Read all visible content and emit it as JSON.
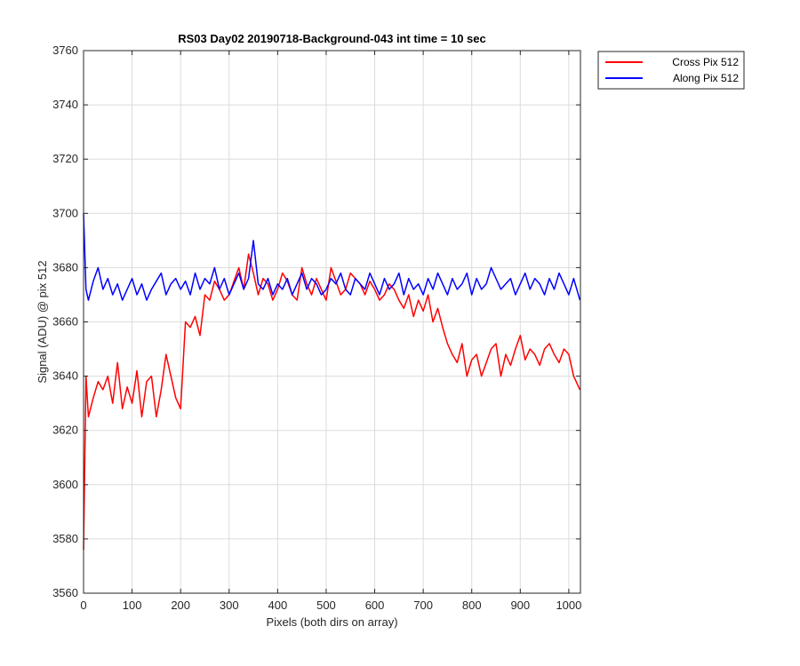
{
  "chart_data": {
    "type": "line",
    "title": "RS03 Day02 20190718-Background-043 int time = 10 sec",
    "xlabel": "Pixels (both dirs on array)",
    "ylabel": "Signal (ADU) @ pix 512",
    "xlim": [
      0,
      1024
    ],
    "ylim": [
      3560,
      3760
    ],
    "xticks": [
      0,
      100,
      200,
      300,
      400,
      500,
      600,
      700,
      800,
      900,
      1000
    ],
    "yticks": [
      3560,
      3580,
      3600,
      3620,
      3640,
      3660,
      3680,
      3700,
      3720,
      3740,
      3760
    ],
    "grid": true,
    "legend_location": "outside-top-right",
    "series": [
      {
        "name": "Cross Pix 512",
        "color": "#ff0000",
        "x": [
          0,
          5,
          10,
          20,
          30,
          40,
          50,
          60,
          70,
          80,
          90,
          100,
          110,
          120,
          130,
          140,
          150,
          160,
          170,
          180,
          190,
          200,
          210,
          220,
          230,
          240,
          250,
          260,
          270,
          280,
          290,
          300,
          310,
          320,
          330,
          340,
          350,
          360,
          370,
          380,
          390,
          400,
          410,
          420,
          430,
          440,
          450,
          460,
          470,
          480,
          490,
          500,
          510,
          520,
          530,
          540,
          550,
          560,
          570,
          580,
          590,
          600,
          610,
          620,
          630,
          640,
          650,
          660,
          670,
          680,
          690,
          700,
          710,
          720,
          730,
          740,
          750,
          760,
          770,
          780,
          790,
          800,
          810,
          820,
          830,
          840,
          850,
          860,
          870,
          880,
          890,
          900,
          910,
          920,
          930,
          940,
          950,
          960,
          970,
          980,
          990,
          1000,
          1010,
          1023
        ],
        "y": [
          3576,
          3640,
          3625,
          3632,
          3638,
          3635,
          3640,
          3630,
          3645,
          3628,
          3636,
          3630,
          3642,
          3625,
          3638,
          3640,
          3625,
          3635,
          3648,
          3640,
          3632,
          3628,
          3660,
          3658,
          3662,
          3655,
          3670,
          3668,
          3675,
          3672,
          3668,
          3670,
          3675,
          3680,
          3672,
          3685,
          3678,
          3670,
          3676,
          3674,
          3668,
          3672,
          3678,
          3675,
          3670,
          3668,
          3680,
          3674,
          3670,
          3676,
          3672,
          3668,
          3680,
          3675,
          3670,
          3672,
          3678,
          3676,
          3674,
          3670,
          3675,
          3672,
          3668,
          3670,
          3674,
          3672,
          3668,
          3665,
          3670,
          3662,
          3668,
          3664,
          3670,
          3660,
          3665,
          3658,
          3652,
          3648,
          3645,
          3652,
          3640,
          3646,
          3648,
          3640,
          3645,
          3650,
          3652,
          3640,
          3648,
          3644,
          3650,
          3655,
          3646,
          3650,
          3648,
          3644,
          3650,
          3652,
          3648,
          3645,
          3650,
          3648,
          3640,
          3635
        ]
      },
      {
        "name": "Along Pix 512",
        "color": "#0000ff",
        "x": [
          0,
          5,
          10,
          20,
          30,
          40,
          50,
          60,
          70,
          80,
          90,
          100,
          110,
          120,
          130,
          140,
          150,
          160,
          170,
          180,
          190,
          200,
          210,
          220,
          230,
          240,
          250,
          260,
          270,
          280,
          290,
          300,
          310,
          320,
          330,
          340,
          350,
          360,
          370,
          380,
          390,
          400,
          410,
          420,
          430,
          440,
          450,
          460,
          470,
          480,
          490,
          500,
          510,
          520,
          530,
          540,
          550,
          560,
          570,
          580,
          590,
          600,
          610,
          620,
          630,
          640,
          650,
          660,
          670,
          680,
          690,
          700,
          710,
          720,
          730,
          740,
          750,
          760,
          770,
          780,
          790,
          800,
          810,
          820,
          830,
          840,
          850,
          860,
          870,
          880,
          890,
          900,
          910,
          920,
          930,
          940,
          950,
          960,
          970,
          980,
          990,
          1000,
          1010,
          1023
        ],
        "y": [
          3700,
          3672,
          3668,
          3675,
          3680,
          3672,
          3676,
          3670,
          3674,
          3668,
          3672,
          3676,
          3670,
          3674,
          3668,
          3672,
          3675,
          3678,
          3670,
          3674,
          3676,
          3672,
          3675,
          3670,
          3678,
          3672,
          3676,
          3674,
          3680,
          3672,
          3676,
          3670,
          3674,
          3678,
          3672,
          3676,
          3690,
          3674,
          3672,
          3676,
          3670,
          3674,
          3672,
          3676,
          3670,
          3674,
          3678,
          3672,
          3676,
          3674,
          3670,
          3672,
          3676,
          3674,
          3678,
          3672,
          3670,
          3676,
          3674,
          3672,
          3678,
          3674,
          3670,
          3676,
          3672,
          3674,
          3678,
          3670,
          3676,
          3672,
          3674,
          3670,
          3676,
          3672,
          3678,
          3674,
          3670,
          3676,
          3672,
          3674,
          3678,
          3670,
          3676,
          3672,
          3674,
          3680,
          3676,
          3672,
          3674,
          3676,
          3670,
          3674,
          3678,
          3672,
          3676,
          3674,
          3670,
          3676,
          3672,
          3678,
          3674,
          3670,
          3676,
          3668
        ]
      }
    ]
  }
}
